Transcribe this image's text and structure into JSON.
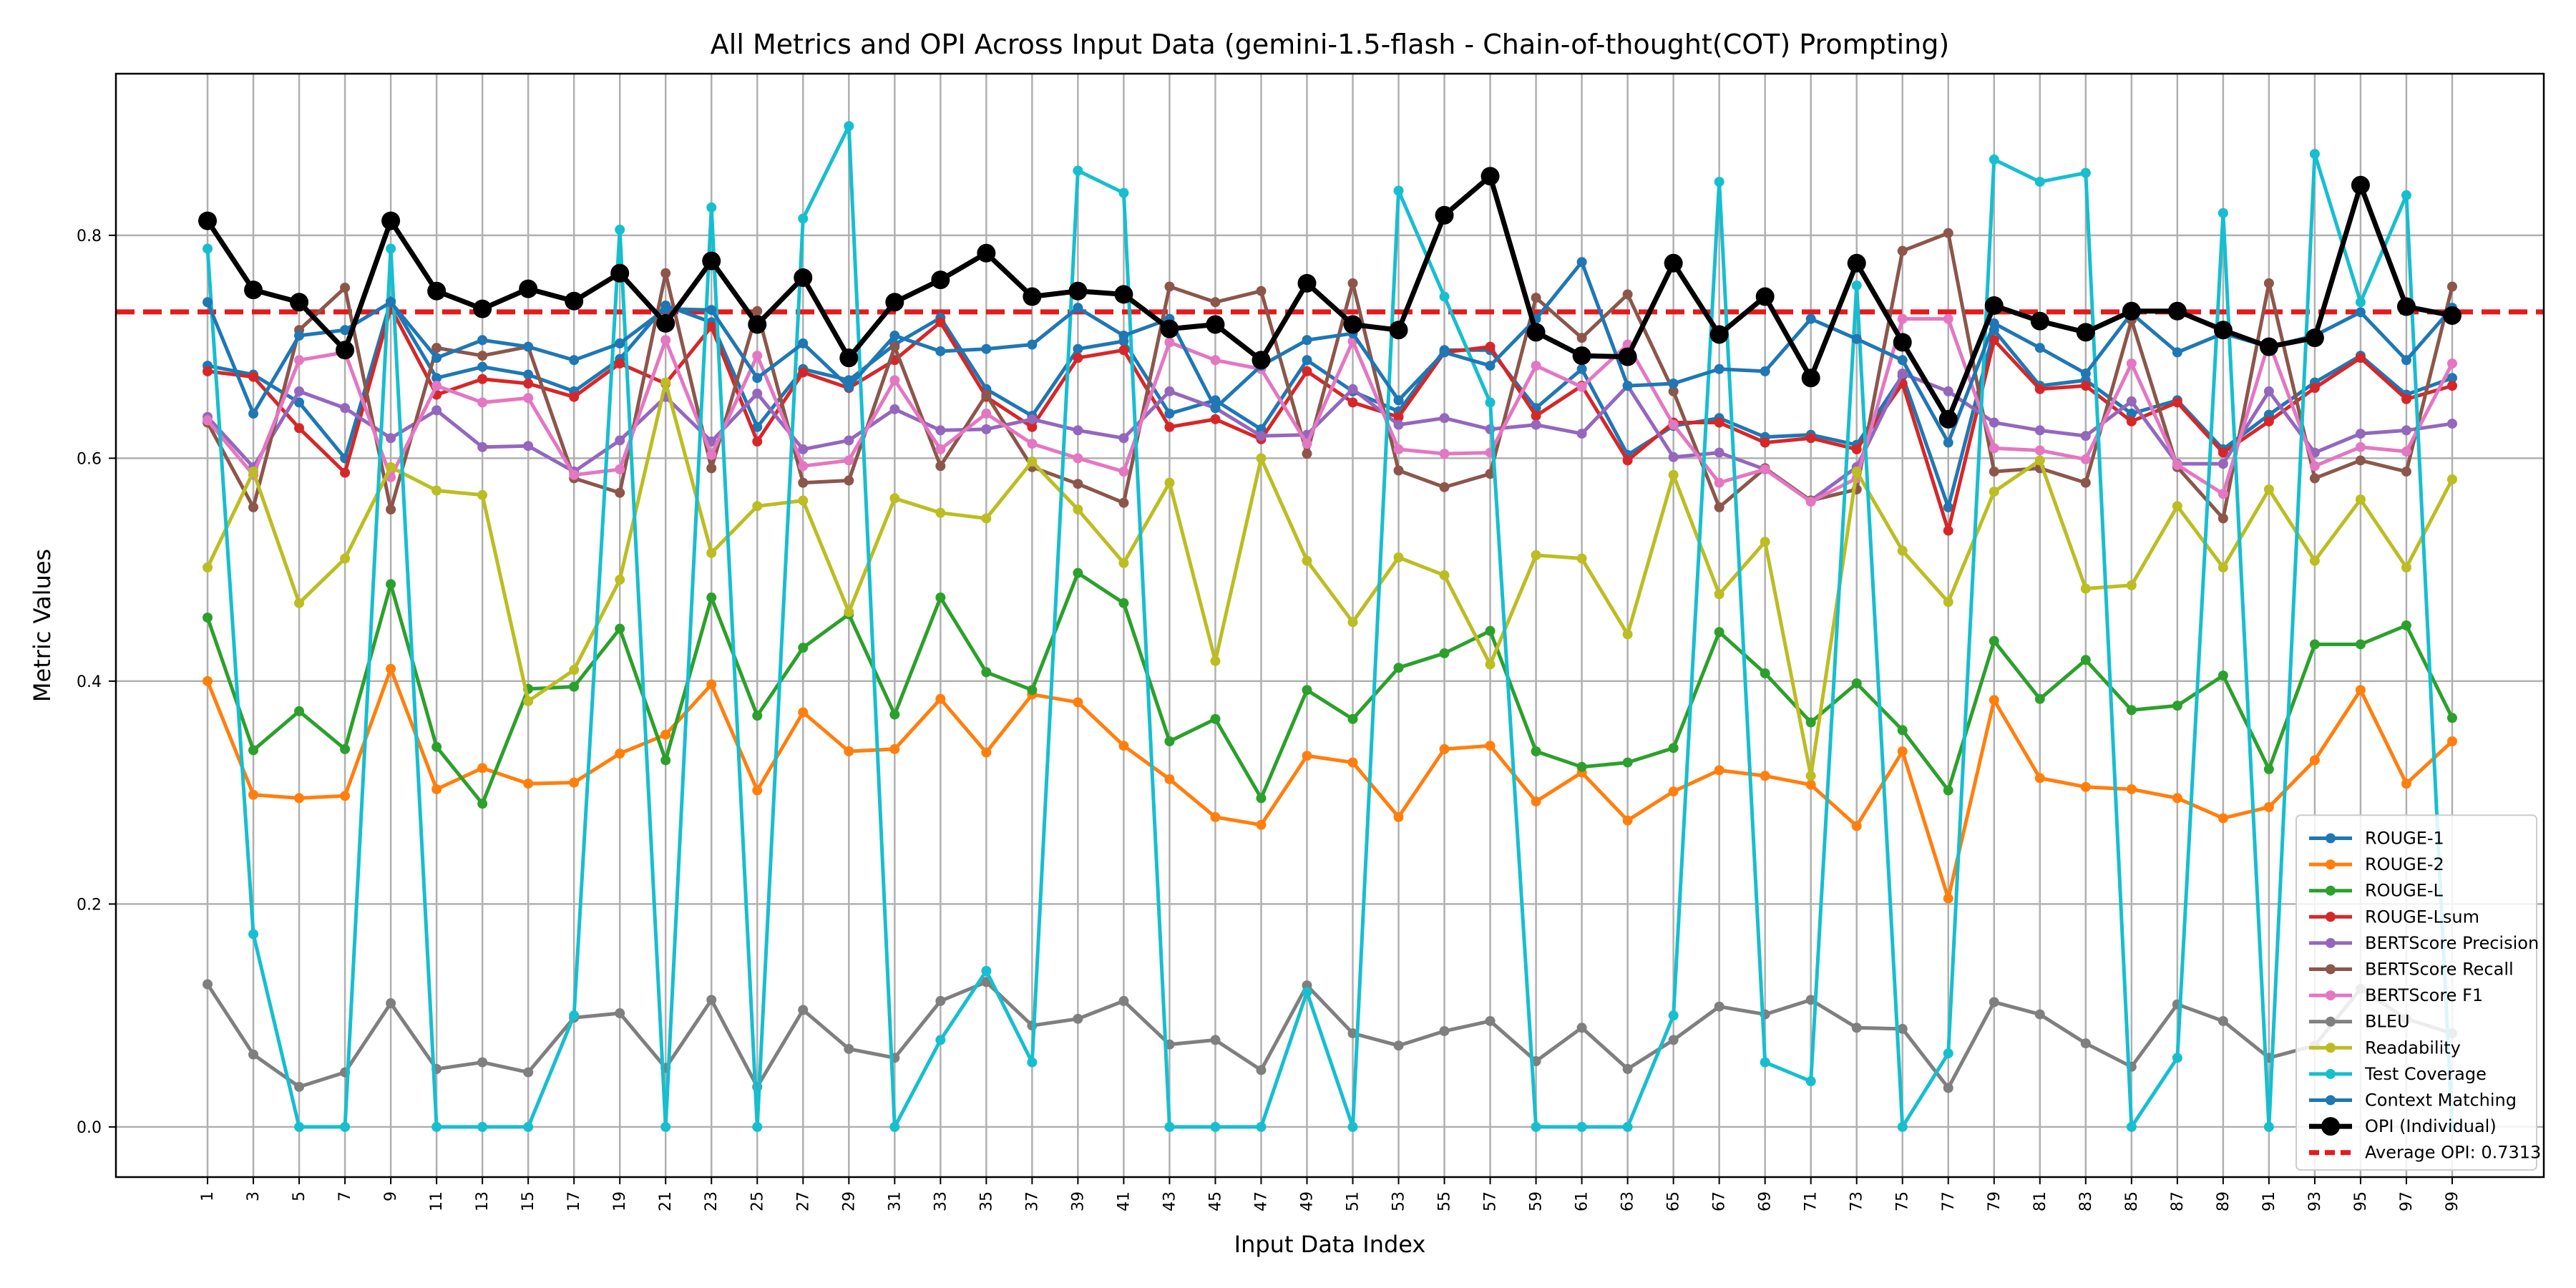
{
  "chart_data": {
    "type": "line",
    "title": "All Metrics and OPI Across Input Data (gemini-1.5-flash - Chain-of-thought(COT) Prompting)",
    "xlabel": "Input Data Index",
    "ylabel": "Metric Values",
    "ylim": [
      -0.045,
      0.945
    ],
    "y_ticks": [
      "0.0",
      "0.2",
      "0.4",
      "0.6",
      "0.8"
    ],
    "x": [
      1,
      3,
      5,
      7,
      9,
      11,
      13,
      15,
      17,
      19,
      21,
      23,
      25,
      27,
      29,
      31,
      33,
      35,
      37,
      39,
      41,
      43,
      45,
      47,
      49,
      51,
      53,
      55,
      57,
      59,
      61,
      63,
      65,
      67,
      69,
      71,
      73,
      75,
      77,
      79,
      81,
      83,
      85,
      87,
      89,
      91,
      93,
      95,
      97,
      99
    ],
    "grid": true,
    "legend_position": "lower-right",
    "reference_line": {
      "label": "Average OPI: 0.7313",
      "value": 0.7313,
      "color": "#e41a1c"
    },
    "series": [
      {
        "name": "ROUGE-1",
        "color": "#1f77b4",
        "values": [
          0.683,
          0.675,
          0.65,
          0.6,
          0.741,
          0.672,
          0.682,
          0.675,
          0.66,
          0.689,
          0.737,
          0.722,
          0.628,
          0.68,
          0.67,
          0.702,
          0.726,
          0.662,
          0.638,
          0.698,
          0.705,
          0.64,
          0.652,
          0.626,
          0.688,
          0.66,
          0.642,
          0.697,
          0.697,
          0.645,
          0.68,
          0.603,
          0.629,
          0.636,
          0.619,
          0.621,
          0.612,
          0.674,
          0.556,
          0.715,
          0.665,
          0.67,
          0.64,
          0.652,
          0.608,
          0.639,
          0.668,
          0.692,
          0.657,
          0.672
        ]
      },
      {
        "name": "ROUGE-2",
        "color": "#ff7f0e",
        "values": [
          0.4,
          0.298,
          0.295,
          0.297,
          0.411,
          0.303,
          0.322,
          0.308,
          0.309,
          0.335,
          0.352,
          0.397,
          0.302,
          0.372,
          0.337,
          0.339,
          0.384,
          0.336,
          0.388,
          0.381,
          0.342,
          0.312,
          0.278,
          0.271,
          0.333,
          0.327,
          0.278,
          0.339,
          0.342,
          0.292,
          0.318,
          0.275,
          0.301,
          0.32,
          0.315,
          0.307,
          0.27,
          0.337,
          0.205,
          0.383,
          0.313,
          0.305,
          0.303,
          0.295,
          0.277,
          0.287,
          0.329,
          0.392,
          0.308,
          0.346
        ]
      },
      {
        "name": "ROUGE-L",
        "color": "#2ca02c",
        "values": [
          0.457,
          0.338,
          0.373,
          0.339,
          0.487,
          0.341,
          0.29,
          0.393,
          0.395,
          0.447,
          0.329,
          0.475,
          0.369,
          0.43,
          0.46,
          0.37,
          0.475,
          0.408,
          0.392,
          0.497,
          0.47,
          0.346,
          0.366,
          0.295,
          0.392,
          0.366,
          0.412,
          0.425,
          0.445,
          0.337,
          0.323,
          0.327,
          0.34,
          0.444,
          0.407,
          0.363,
          0.398,
          0.356,
          0.302,
          0.436,
          0.384,
          0.419,
          0.374,
          0.378,
          0.405,
          0.321,
          0.433,
          0.433,
          0.45,
          0.367
        ]
      },
      {
        "name": "ROUGE-Lsum",
        "color": "#d62728",
        "values": [
          0.678,
          0.673,
          0.627,
          0.587,
          0.735,
          0.657,
          0.671,
          0.667,
          0.655,
          0.685,
          0.667,
          0.718,
          0.615,
          0.677,
          0.663,
          0.688,
          0.722,
          0.655,
          0.628,
          0.69,
          0.697,
          0.628,
          0.635,
          0.617,
          0.678,
          0.65,
          0.637,
          0.695,
          0.7,
          0.638,
          0.665,
          0.598,
          0.632,
          0.632,
          0.614,
          0.618,
          0.608,
          0.667,
          0.535,
          0.706,
          0.662,
          0.665,
          0.633,
          0.65,
          0.605,
          0.633,
          0.663,
          0.69,
          0.653,
          0.665
        ]
      },
      {
        "name": "BERTScore Precision",
        "color": "#9467bd",
        "values": [
          0.637,
          0.592,
          0.66,
          0.645,
          0.618,
          0.643,
          0.61,
          0.611,
          0.588,
          0.616,
          0.655,
          0.615,
          0.658,
          0.608,
          0.616,
          0.644,
          0.625,
          0.626,
          0.635,
          0.625,
          0.618,
          0.66,
          0.645,
          0.62,
          0.621,
          0.662,
          0.63,
          0.636,
          0.626,
          0.63,
          0.622,
          0.665,
          0.601,
          0.605,
          0.59,
          0.562,
          0.592,
          0.676,
          0.66,
          0.632,
          0.625,
          0.62,
          0.651,
          0.595,
          0.595,
          0.66,
          0.605,
          0.622,
          0.625,
          0.631
        ]
      },
      {
        "name": "BERTScore Recall",
        "color": "#8c564b",
        "values": [
          0.632,
          0.556,
          0.715,
          0.753,
          0.554,
          0.699,
          0.692,
          0.7,
          0.582,
          0.569,
          0.766,
          0.591,
          0.732,
          0.578,
          0.58,
          0.7,
          0.593,
          0.657,
          0.592,
          0.577,
          0.56,
          0.754,
          0.74,
          0.75,
          0.604,
          0.757,
          0.589,
          0.574,
          0.586,
          0.744,
          0.708,
          0.747,
          0.66,
          0.556,
          0.591,
          0.562,
          0.572,
          0.786,
          0.802,
          0.588,
          0.591,
          0.578,
          0.724,
          0.592,
          0.546,
          0.757,
          0.582,
          0.598,
          0.588,
          0.754
        ]
      },
      {
        "name": "BERTScore F1",
        "color": "#e377c2",
        "values": [
          0.634,
          0.585,
          0.688,
          0.695,
          0.583,
          0.665,
          0.65,
          0.654,
          0.585,
          0.59,
          0.706,
          0.603,
          0.692,
          0.593,
          0.598,
          0.67,
          0.608,
          0.64,
          0.613,
          0.6,
          0.588,
          0.704,
          0.688,
          0.68,
          0.613,
          0.705,
          0.608,
          0.604,
          0.605,
          0.683,
          0.664,
          0.702,
          0.63,
          0.578,
          0.59,
          0.561,
          0.582,
          0.725,
          0.725,
          0.609,
          0.607,
          0.599,
          0.685,
          0.594,
          0.568,
          0.704,
          0.593,
          0.61,
          0.606,
          0.685
        ]
      },
      {
        "name": "BLEU",
        "color": "#7f7f7f",
        "values": [
          0.128,
          0.065,
          0.036,
          0.049,
          0.111,
          0.052,
          0.058,
          0.049,
          0.098,
          0.102,
          0.053,
          0.114,
          0.036,
          0.105,
          0.07,
          0.062,
          0.113,
          0.13,
          0.091,
          0.097,
          0.113,
          0.074,
          0.078,
          0.051,
          0.127,
          0.084,
          0.073,
          0.086,
          0.095,
          0.059,
          0.089,
          0.052,
          0.078,
          0.108,
          0.101,
          0.114,
          0.089,
          0.088,
          0.035,
          0.112,
          0.101,
          0.075,
          0.054,
          0.11,
          0.095,
          0.062,
          0.073,
          0.124,
          0.097,
          0.084
        ]
      },
      {
        "name": "Readability",
        "color": "#bcbd22",
        "values": [
          0.502,
          0.588,
          0.47,
          0.51,
          0.592,
          0.571,
          0.567,
          0.382,
          0.41,
          0.491,
          0.668,
          0.515,
          0.557,
          0.562,
          0.462,
          0.564,
          0.551,
          0.546,
          0.597,
          0.554,
          0.506,
          0.578,
          0.418,
          0.6,
          0.508,
          0.453,
          0.511,
          0.495,
          0.415,
          0.513,
          0.51,
          0.442,
          0.585,
          0.478,
          0.525,
          0.315,
          0.588,
          0.517,
          0.471,
          0.57,
          0.598,
          0.483,
          0.486,
          0.557,
          0.502,
          0.572,
          0.508,
          0.563,
          0.502,
          0.581
        ]
      },
      {
        "name": "Test Coverage",
        "color": "#17becf",
        "values": [
          0.788,
          0.173,
          0.0,
          0.0,
          0.788,
          0.0,
          0.0,
          0.0,
          0.1,
          0.805,
          0.0,
          0.825,
          0.0,
          0.815,
          0.898,
          0.0,
          0.078,
          0.14,
          0.058,
          0.858,
          0.838,
          0.0,
          0.0,
          0.0,
          0.121,
          0.0,
          0.84,
          0.745,
          0.65,
          0.0,
          0.0,
          0.0,
          0.1,
          0.848,
          0.058,
          0.041,
          0.755,
          0.0,
          0.066,
          0.868,
          0.848,
          0.856,
          0.0,
          0.062,
          0.82,
          0.0,
          0.873,
          0.74,
          0.836,
          0.0
        ]
      },
      {
        "name": "Context Matching",
        "color": "#1f77b4",
        "values": [
          0.74,
          0.64,
          0.71,
          0.715,
          0.74,
          0.69,
          0.706,
          0.7,
          0.688,
          0.703,
          0.734,
          0.733,
          0.672,
          0.703,
          0.664,
          0.71,
          0.696,
          0.698,
          0.702,
          0.735,
          0.71,
          0.725,
          0.645,
          0.683,
          0.706,
          0.712,
          0.652,
          0.695,
          0.683,
          0.725,
          0.776,
          0.665,
          0.667,
          0.68,
          0.678,
          0.725,
          0.707,
          0.688,
          0.614,
          0.721,
          0.699,
          0.676,
          0.73,
          0.695,
          0.712,
          0.7,
          0.71,
          0.731,
          0.688,
          0.735
        ]
      },
      {
        "name": "OPI (Individual)",
        "color": "#000000",
        "values": [
          0.813,
          0.751,
          0.74,
          0.697,
          0.813,
          0.75,
          0.734,
          0.752,
          0.741,
          0.766,
          0.721,
          0.777,
          0.72,
          0.762,
          0.69,
          0.74,
          0.76,
          0.784,
          0.745,
          0.75,
          0.747,
          0.716,
          0.72,
          0.688,
          0.757,
          0.72,
          0.715,
          0.818,
          0.853,
          0.713,
          0.692,
          0.691,
          0.775,
          0.711,
          0.745,
          0.672,
          0.775,
          0.704,
          0.635,
          0.737,
          0.723,
          0.713,
          0.732,
          0.732,
          0.715,
          0.7,
          0.708,
          0.845,
          0.736,
          0.728
        ]
      }
    ]
  }
}
